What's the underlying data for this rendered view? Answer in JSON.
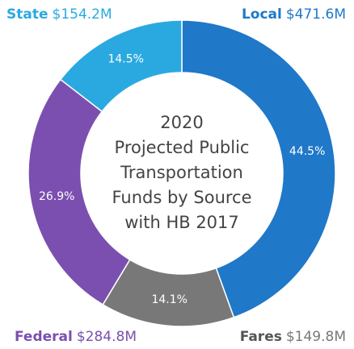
{
  "chart_data": {
    "type": "donut",
    "title": [
      "2020",
      "Projected Public",
      "Transportation",
      "Funds by Source",
      "with HB 2017"
    ],
    "categories": [
      "Local",
      "Fares",
      "Federal",
      "State"
    ],
    "values": [
      44.5,
      14.1,
      26.9,
      14.5
    ],
    "value_labels": [
      "44.5%",
      "14.1%",
      "26.9%",
      "14.5%"
    ],
    "amount_labels": [
      "$471.6M",
      "$149.8M",
      "$284.8M",
      "$154.2M"
    ],
    "colors": [
      "#1f78c8",
      "#787878",
      "#7b4fb0",
      "#2aa9e0"
    ]
  }
}
